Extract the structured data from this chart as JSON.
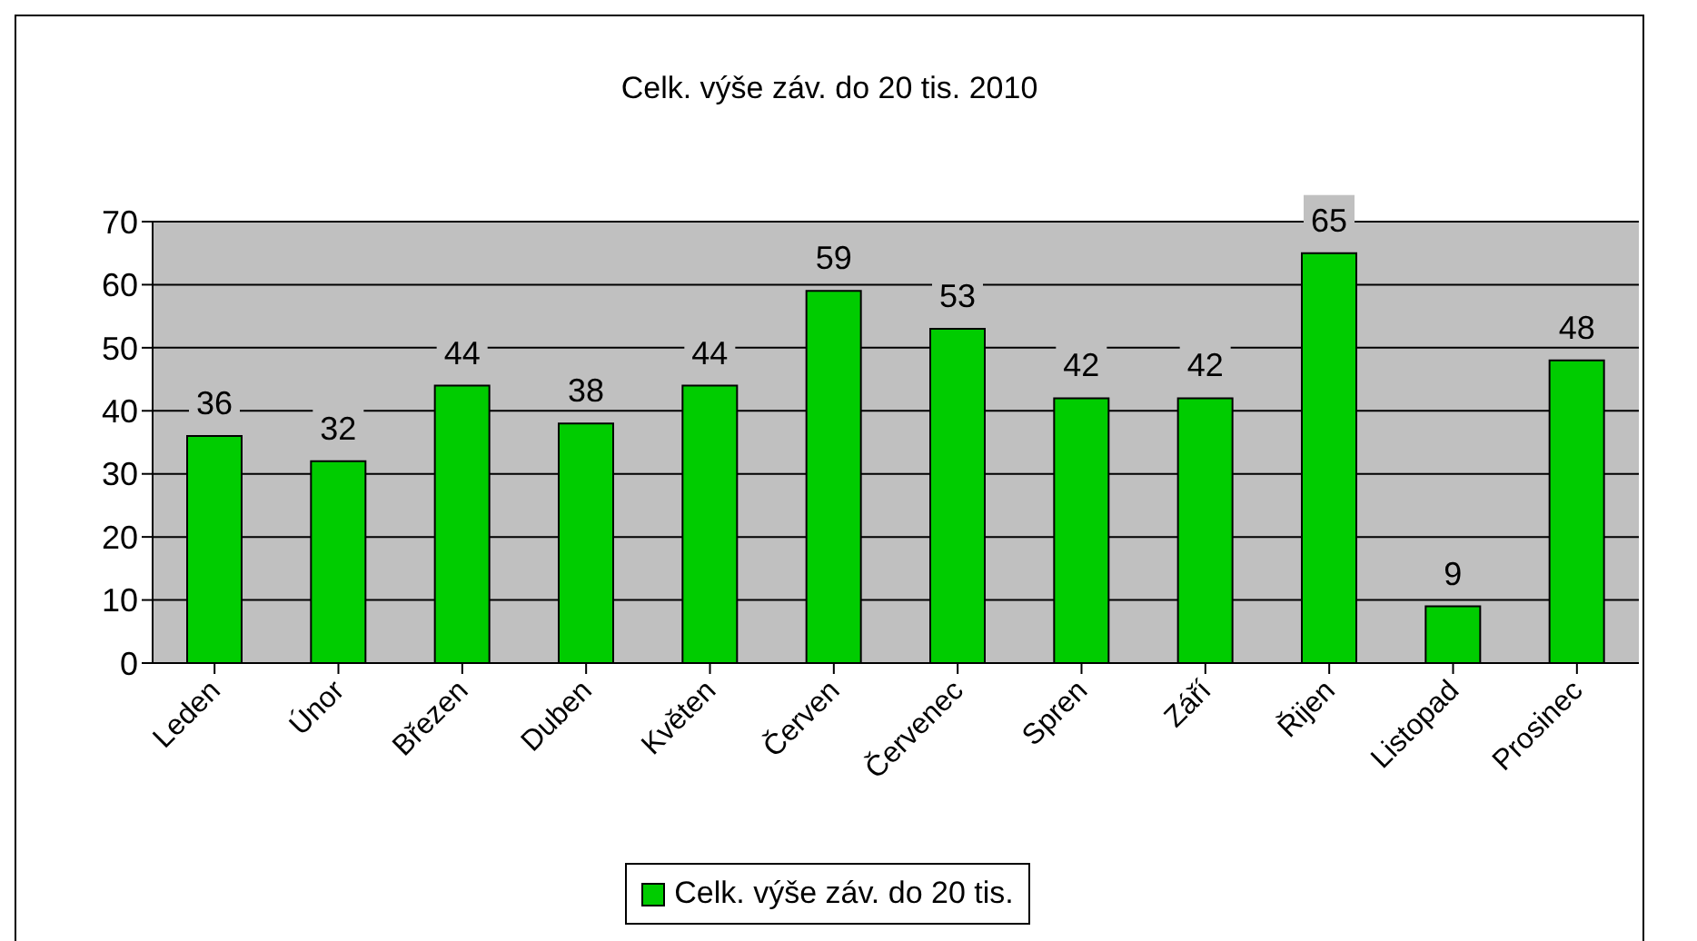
{
  "chart_data": {
    "type": "bar",
    "title": "Celk. výše záv. do 20 tis. 2010",
    "categories": [
      "Leden",
      "Únor",
      "Březen",
      "Duben",
      "Květen",
      "Červen",
      "Červenec",
      "Spren",
      "Září",
      "Řijen",
      "Listopad",
      "Prosinec"
    ],
    "series": [
      {
        "name": "Celk. výše záv. do 20 tis.",
        "color": "#00cc00",
        "values": [
          36,
          32,
          44,
          38,
          44,
          59,
          53,
          42,
          42,
          65,
          9,
          48
        ]
      }
    ],
    "ylim": [
      0,
      70
    ],
    "yticks": [
      0,
      10,
      20,
      30,
      40,
      50,
      60,
      70
    ],
    "grid": "y",
    "legend": "bottom",
    "data_labels": true
  }
}
